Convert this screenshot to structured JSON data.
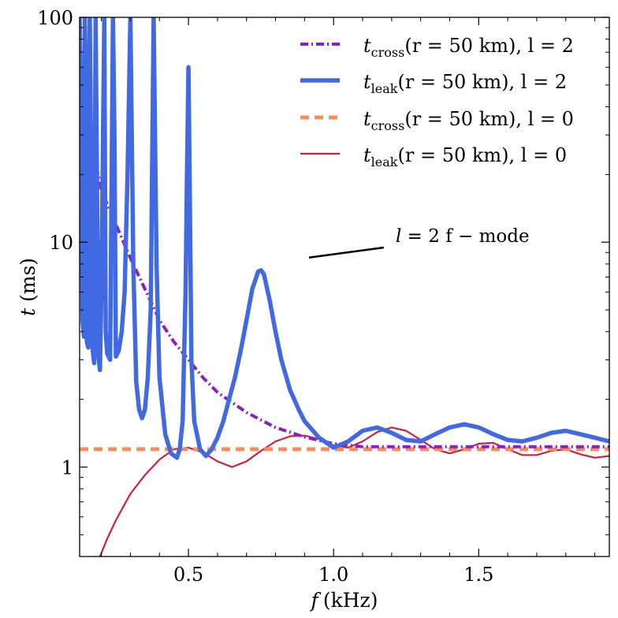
{
  "chart_data": {
    "type": "line",
    "xlabel_var": "f",
    "xlabel_unit": "(kHz)",
    "ylabel_var": "t",
    "ylabel_unit": "(ms)",
    "xlim": [
      0.125,
      1.95
    ],
    "ylim": [
      0.4,
      100
    ],
    "yscale": "log",
    "grid": false,
    "legend_placement": "top-right",
    "x_ticks": [
      {
        "value": 0.5,
        "label": "0.5"
      },
      {
        "value": 1.0,
        "label": "1.0"
      },
      {
        "value": 1.5,
        "label": "1.5"
      }
    ],
    "y_ticks": [
      {
        "value": 1,
        "label": "1"
      },
      {
        "value": 10,
        "label": "10"
      },
      {
        "value": 100,
        "label": "100"
      }
    ],
    "series": [
      {
        "name_sym": "t",
        "name_sub": "cross",
        "name_args": "(r = 50 km), l = 2",
        "color": "#8B1FC6",
        "style": "dashdot",
        "x": [
          0.15,
          0.2,
          0.25,
          0.3,
          0.35,
          0.4,
          0.45,
          0.5,
          0.55,
          0.6,
          0.7,
          0.8,
          0.9,
          1.0,
          1.05,
          1.1,
          1.2,
          1.4,
          1.6,
          1.8,
          1.95
        ],
        "y": [
          35,
          17,
          12,
          8.5,
          6.2,
          4.5,
          3.6,
          3.0,
          2.5,
          2.15,
          1.75,
          1.5,
          1.36,
          1.27,
          1.25,
          1.23,
          1.23,
          1.23,
          1.23,
          1.23,
          1.23
        ]
      },
      {
        "name_sym": "t",
        "name_sub": "leak",
        "name_args": "(r = 50 km), l = 2",
        "color": "#4169E1",
        "style": "solid-thick",
        "x": [
          0.125,
          0.13,
          0.135,
          0.14,
          0.143,
          0.146,
          0.15,
          0.155,
          0.16,
          0.165,
          0.17,
          0.175,
          0.18,
          0.19,
          0.195,
          0.2,
          0.21,
          0.215,
          0.22,
          0.23,
          0.24,
          0.245,
          0.25,
          0.26,
          0.27,
          0.28,
          0.29,
          0.3,
          0.31,
          0.32,
          0.33,
          0.34,
          0.35,
          0.36,
          0.37,
          0.38,
          0.39,
          0.4,
          0.42,
          0.44,
          0.46,
          0.47,
          0.48,
          0.49,
          0.495,
          0.5,
          0.505,
          0.51,
          0.52,
          0.54,
          0.56,
          0.58,
          0.6,
          0.62,
          0.64,
          0.66,
          0.68,
          0.7,
          0.72,
          0.74,
          0.75,
          0.76,
          0.78,
          0.8,
          0.82,
          0.85,
          0.88,
          0.9,
          0.95,
          1.0,
          1.05,
          1.1,
          1.15,
          1.2,
          1.25,
          1.3,
          1.35,
          1.4,
          1.45,
          1.5,
          1.55,
          1.6,
          1.65,
          1.7,
          1.75,
          1.8,
          1.85,
          1.9,
          1.95
        ],
        "y": [
          100,
          40,
          4.5,
          3.8,
          100,
          60,
          3.6,
          3.4,
          100,
          20,
          3.3,
          2.9,
          100,
          3.1,
          2.7,
          6,
          100,
          4,
          3.2,
          3.0,
          100,
          30,
          3.1,
          3.3,
          4,
          6,
          20,
          100,
          8,
          2.4,
          1.8,
          1.65,
          1.8,
          2.5,
          5,
          100,
          8,
          2.5,
          1.4,
          1.15,
          1.1,
          1.2,
          1.6,
          6,
          20,
          60,
          15,
          3,
          1.6,
          1.2,
          1.12,
          1.2,
          1.35,
          1.6,
          2.0,
          2.5,
          3.3,
          4.5,
          6.2,
          7.4,
          7.5,
          7.2,
          5.5,
          4.0,
          3.0,
          2.2,
          1.8,
          1.6,
          1.35,
          1.22,
          1.3,
          1.45,
          1.5,
          1.42,
          1.32,
          1.3,
          1.4,
          1.5,
          1.55,
          1.5,
          1.4,
          1.32,
          1.3,
          1.35,
          1.42,
          1.45,
          1.4,
          1.35,
          1.3
        ]
      },
      {
        "name_sym": "t",
        "name_sub": "cross",
        "name_args": "(r = 50 km), l = 0",
        "color": "#FF8C55",
        "style": "dashed",
        "x": [
          0.125,
          1.95
        ],
        "y": [
          1.2,
          1.2
        ]
      },
      {
        "name_sym": "t",
        "name_sub": "leak",
        "name_args": "(r = 50 km), l = 0",
        "color": "#C8223E",
        "style": "solid-thin",
        "x": [
          0.195,
          0.22,
          0.25,
          0.3,
          0.35,
          0.4,
          0.45,
          0.5,
          0.55,
          0.6,
          0.65,
          0.7,
          0.75,
          0.8,
          0.85,
          0.9,
          0.95,
          1.0,
          1.05,
          1.1,
          1.15,
          1.2,
          1.25,
          1.3,
          1.35,
          1.4,
          1.45,
          1.5,
          1.55,
          1.6,
          1.65,
          1.7,
          1.75,
          1.8,
          1.85,
          1.9,
          1.95
        ],
        "y": [
          0.4,
          0.48,
          0.58,
          0.76,
          0.92,
          1.08,
          1.2,
          1.22,
          1.16,
          1.06,
          1.0,
          1.06,
          1.18,
          1.3,
          1.37,
          1.38,
          1.33,
          1.25,
          1.22,
          1.3,
          1.43,
          1.5,
          1.45,
          1.32,
          1.2,
          1.15,
          1.2,
          1.27,
          1.28,
          1.2,
          1.13,
          1.13,
          1.18,
          1.2,
          1.14,
          1.1,
          1.12
        ]
      }
    ],
    "annotation": {
      "text_l": "l",
      "text_rest": " = 2 f − mode",
      "points_to": [
        0.765,
        8.2
      ]
    }
  }
}
